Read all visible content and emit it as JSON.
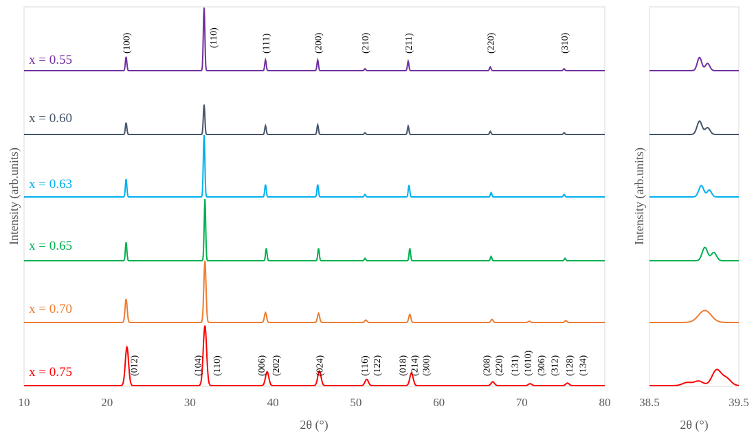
{
  "chart_data": [
    {
      "type": "line",
      "panel": "main",
      "xlabel": "2θ (°)",
      "ylabel": "Intensity (arb.units)",
      "xlim": [
        10,
        80
      ],
      "xticks": [
        "10",
        "20",
        "30",
        "40",
        "50",
        "60",
        "70",
        "80"
      ],
      "y_ticks_shown": false,
      "grid": false,
      "legend": "none",
      "series": [
        {
          "name": "x = 0.55",
          "color": "#7030a0",
          "peaks": [
            [
              22.3,
              0.22
            ],
            [
              31.7,
              1.0
            ],
            [
              39.1,
              0.17
            ],
            [
              45.4,
              0.17
            ],
            [
              51.1,
              0.03
            ],
            [
              56.3,
              0.15
            ],
            [
              66.2,
              0.06
            ],
            [
              75.1,
              0.03
            ]
          ]
        },
        {
          "name": "x = 0.60",
          "color": "#44546a",
          "peaks": [
            [
              22.3,
              0.27
            ],
            [
              31.7,
              0.68
            ],
            [
              39.1,
              0.2
            ],
            [
              45.4,
              0.22
            ],
            [
              51.1,
              0.04
            ],
            [
              56.3,
              0.19
            ],
            [
              66.2,
              0.07
            ],
            [
              75.1,
              0.04
            ]
          ]
        },
        {
          "name": "x = 0.63",
          "color": "#00b0f0",
          "peaks": [
            [
              22.3,
              0.29
            ],
            [
              31.7,
              1.0
            ],
            [
              39.1,
              0.2
            ],
            [
              45.4,
              0.2
            ],
            [
              51.1,
              0.04
            ],
            [
              56.4,
              0.19
            ],
            [
              66.3,
              0.07
            ],
            [
              75.1,
              0.04
            ]
          ]
        },
        {
          "name": "x = 0.65",
          "color": "#00b050",
          "peaks": [
            [
              22.3,
              0.3
            ],
            [
              31.8,
              1.0
            ],
            [
              39.2,
              0.2
            ],
            [
              45.5,
              0.2
            ],
            [
              51.1,
              0.04
            ],
            [
              56.5,
              0.2
            ],
            [
              66.3,
              0.07
            ],
            [
              75.2,
              0.04
            ]
          ]
        },
        {
          "name": "x = 0.70",
          "color": "#ed7d31",
          "peaks": [
            [
              22.3,
              0.38
            ],
            [
              31.8,
              1.0
            ],
            [
              39.1,
              0.16
            ],
            [
              45.5,
              0.15
            ],
            [
              51.2,
              0.04
            ],
            [
              56.5,
              0.13
            ],
            [
              66.4,
              0.05
            ],
            [
              70.9,
              0.02
            ],
            [
              75.3,
              0.03
            ]
          ]
        },
        {
          "name": "x = 0.75",
          "color": "#ff0000",
          "peaks": [
            [
              22.4,
              0.61
            ],
            [
              31.8,
              0.95
            ],
            [
              39.3,
              0.22
            ],
            [
              45.6,
              0.23
            ],
            [
              51.3,
              0.1
            ],
            [
              56.7,
              0.2
            ],
            [
              66.5,
              0.06
            ],
            [
              71.0,
              0.03
            ],
            [
              75.5,
              0.04
            ]
          ]
        }
      ],
      "annotations_top": [
        {
          "label": "(100)",
          "x": 22.3
        },
        {
          "label": "(110)",
          "x": 32.8
        },
        {
          "label": "(111)",
          "x": 39.1
        },
        {
          "label": "(200)",
          "x": 45.4
        },
        {
          "label": "(210)",
          "x": 51.1
        },
        {
          "label": "(211)",
          "x": 56.3
        },
        {
          "label": "(220)",
          "x": 66.2
        },
        {
          "label": "(310)",
          "x": 75.1
        }
      ],
      "annotations_bottom": [
        {
          "label": "(012)",
          "x": 23.2
        },
        {
          "label": "(104)",
          "x": 30.9
        },
        {
          "label": "(110)",
          "x": 33.2
        },
        {
          "label": "(006)",
          "x": 38.6
        },
        {
          "label": "(202)",
          "x": 40.3
        },
        {
          "label": "(024)",
          "x": 45.6
        },
        {
          "label": "(116)",
          "x": 51.0
        },
        {
          "label": "(122)",
          "x": 52.5
        },
        {
          "label": "(018)",
          "x": 55.6
        },
        {
          "label": "(214)",
          "x": 57.0
        },
        {
          "label": "(300)",
          "x": 58.4
        },
        {
          "label": "(208)",
          "x": 65.7
        },
        {
          "label": "(220)",
          "x": 67.2
        },
        {
          "label": "(131)",
          "x": 69.1
        },
        {
          "label": "(1010)",
          "x": 70.7
        },
        {
          "label": "(306)",
          "x": 72.3
        },
        {
          "label": "(312)",
          "x": 73.9
        },
        {
          "label": "(128)",
          "x": 75.7
        },
        {
          "label": "(134)",
          "x": 77.3
        }
      ]
    },
    {
      "type": "line",
      "panel": "zoom",
      "xlabel": "2θ (°)",
      "ylabel": "Intensity (arb.units)",
      "xlim": [
        38.5,
        39.5
      ],
      "xticks": [
        "38.5",
        "39.5"
      ],
      "y_ticks_shown": false,
      "grid": false,
      "legend": "none",
      "series": [
        {
          "name": "x = 0.55",
          "color": "#7030a0",
          "peaks": [
            [
              39.06,
              0.6,
              0.025
            ],
            [
              39.15,
              0.33,
              0.025
            ]
          ]
        },
        {
          "name": "x = 0.60",
          "color": "#44546a",
          "peaks": [
            [
              39.06,
              0.65,
              0.028
            ],
            [
              39.15,
              0.33,
              0.028
            ]
          ]
        },
        {
          "name": "x = 0.63",
          "color": "#00b0f0",
          "peaks": [
            [
              39.08,
              0.55,
              0.028
            ],
            [
              39.17,
              0.33,
              0.025
            ]
          ]
        },
        {
          "name": "x = 0.65",
          "color": "#00b050",
          "peaks": [
            [
              39.12,
              0.65,
              0.03
            ],
            [
              39.22,
              0.4,
              0.03
            ]
          ]
        },
        {
          "name": "x = 0.70",
          "color": "#ed7d31",
          "peaks": [
            [
              39.12,
              0.7,
              0.07
            ]
          ]
        },
        {
          "name": "x = 0.75",
          "color": "#ff0000",
          "peaks": [
            [
              38.92,
              0.15,
              0.05
            ],
            [
              39.05,
              0.22,
              0.05
            ],
            [
              39.25,
              0.75,
              0.05
            ],
            [
              39.36,
              0.35,
              0.05
            ]
          ]
        }
      ]
    }
  ]
}
